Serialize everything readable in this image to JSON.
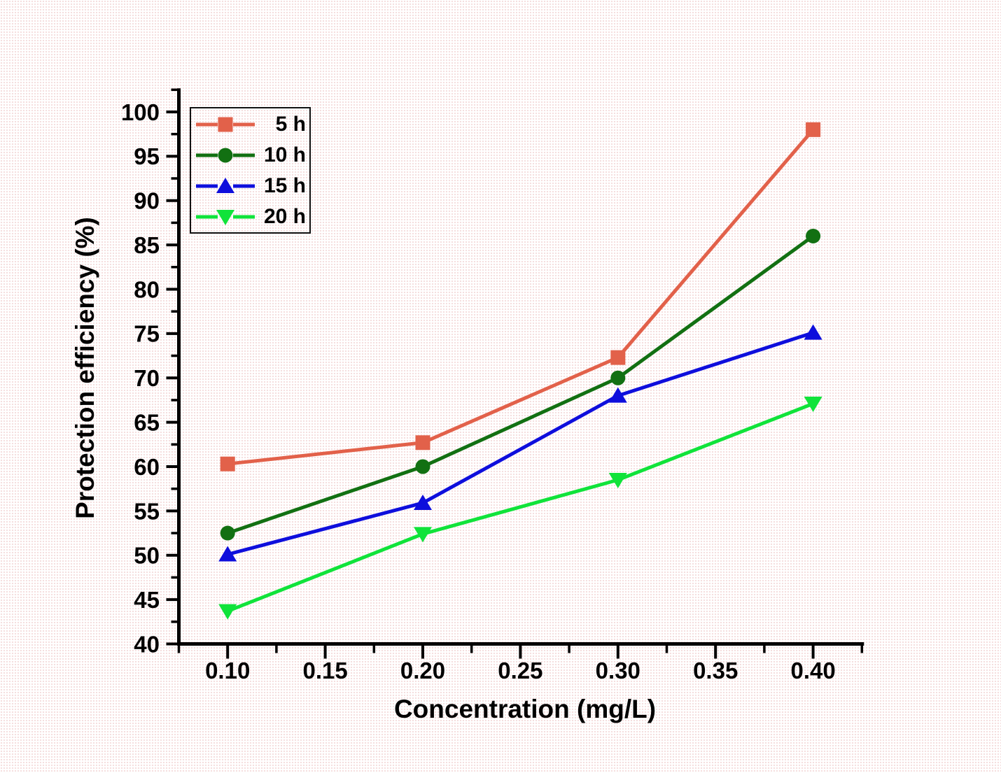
{
  "chart_data": {
    "type": "line",
    "title": "",
    "xlabel": "Concentration (mg/L)",
    "ylabel": "Protection efficiency (%)",
    "x": [
      0.1,
      0.2,
      0.3,
      0.4
    ],
    "series": [
      {
        "name": "5 h",
        "color": "#E2614A",
        "marker": "square",
        "values": [
          60.3,
          62.7,
          72.3,
          98.0
        ]
      },
      {
        "name": "10 h",
        "color": "#127012",
        "marker": "circle",
        "values": [
          52.5,
          60.0,
          70.0,
          86.0
        ]
      },
      {
        "name": "15 h",
        "color": "#0E0EDC",
        "marker": "triangle-up",
        "values": [
          50.1,
          55.9,
          68.0,
          75.1
        ]
      },
      {
        "name": "20 h",
        "color": "#10E33A",
        "marker": "triangle-down",
        "values": [
          43.7,
          52.4,
          58.5,
          67.1
        ]
      }
    ],
    "x_axis": {
      "range": [
        0.075,
        0.425
      ],
      "major_ticks": [
        0.1,
        0.15,
        0.2,
        0.25,
        0.3,
        0.35,
        0.4
      ],
      "tick_labels": [
        "0.10",
        "0.15",
        "0.20",
        "0.25",
        "0.30",
        "0.35",
        "0.40"
      ],
      "minor_step": 0.025
    },
    "y_axis": {
      "range": [
        40,
        102.5
      ],
      "major_ticks": [
        40,
        45,
        50,
        55,
        60,
        65,
        70,
        75,
        80,
        85,
        90,
        95,
        100
      ],
      "tick_labels": [
        "40",
        "45",
        "50",
        "55",
        "60",
        "65",
        "70",
        "75",
        "80",
        "85",
        "90",
        "95",
        "100"
      ],
      "minor_step": 2.5
    },
    "legend": {
      "position": "top-left"
    },
    "grid": false,
    "axis_color": "#000000",
    "text_color": "#000000"
  }
}
